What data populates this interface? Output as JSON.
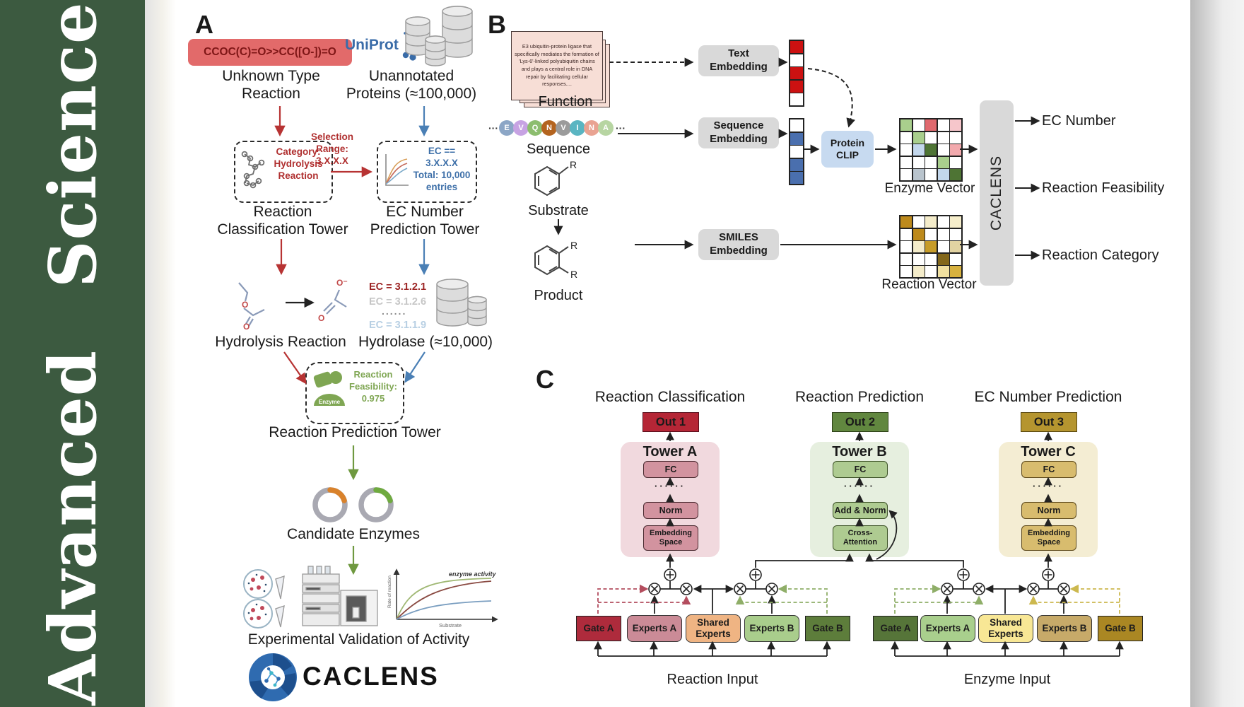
{
  "journal": {
    "vertical_title": "Advanced  Science"
  },
  "colors": {
    "sidebar_green": "#3c5a40",
    "smiles_box_bg": "#e26a6a",
    "red_accent": "#b73333",
    "blue_accent": "#4a7fb5",
    "green_accent": "#6f9940",
    "embedding_gray": "#d9d9d9",
    "protein_clip_blue": "#c7daf0",
    "out1_red": "#b52636",
    "out2_green": "#61873f",
    "out3_gold": "#b5952f"
  },
  "panelA": {
    "label": "A",
    "smiles_reaction": "CCOC(C)=O>>CC([O-])=O",
    "unknown_type_reaction": "Unknown Type\nReaction",
    "uniprot_logo": "UniProt",
    "unannotated_proteins": "Unannotated\nProteins (≈100,000)",
    "selection_range": "Selection\nRange:\n3.X.X.X",
    "category_hydrolysis": "Category:\nHydrolysis\nReaction",
    "ec_selection": "EC == 3.X.X.X\nTotal: 10,000\nentries",
    "reaction_classification_tower": "Reaction\nClassification Tower",
    "ec_number_prediction_tower": "EC Number\nPrediction Tower",
    "hydrolysis_reaction": "Hydrolysis Reaction",
    "ec_list": {
      "top": "EC = 3.1.2.1",
      "mid": "EC = 3.1.2.6",
      "dots": "......",
      "bottom": "EC = 3.1.1.9"
    },
    "hydrolase": "Hydrolase (≈10,000)",
    "enzyme_badge": "Enzyme",
    "reaction_feasibility": "Reaction\nFeasibility:\n0.975",
    "reaction_prediction_tower": "Reaction Prediction Tower",
    "candidate_enzymes": "Candidate Enzymes",
    "experimental_validation": "Experimental Validation of Activity",
    "activity_plot": {
      "curve_label": "enzyme activity",
      "ylabel": "Rate of reaction",
      "xlabel": "Substrate"
    },
    "caclens_wordmark": "CACLENS"
  },
  "panelB": {
    "label": "B",
    "function_card_text": "E3 ubiquitin-protein ligase that specifically mediates the formation of 'Lys-6'-linked polyubiquitin chains and plays a central role in DNA repair by facilitating cellular responses....",
    "function_label": "Function",
    "sequence_label": "Sequence",
    "ellipsis": "···",
    "beads": [
      {
        "letter": "E",
        "color": "#8ca6c6"
      },
      {
        "letter": "V",
        "color": "#c7a3e3"
      },
      {
        "letter": "Q",
        "color": "#8cbd6e"
      },
      {
        "letter": "N",
        "color": "#b4641f"
      },
      {
        "letter": "V",
        "color": "#9b9b9b"
      },
      {
        "letter": "I",
        "color": "#5ab5c2"
      },
      {
        "letter": "N",
        "color": "#e9a392"
      },
      {
        "letter": "A",
        "color": "#b7d5a2"
      }
    ],
    "substrate_label": "Substrate",
    "product_label": "Product",
    "r_label": "R",
    "text_embedding": "Text\nEmbedding",
    "sequence_embedding": "Sequence\nEmbedding",
    "smiles_embedding": "SMILES\nEmbedding",
    "protein_clip": "Protein\nCLIP",
    "text_vector": [
      "#cc1111",
      "#ffffff",
      "#cc1111",
      "#cc1111",
      "#ffffff"
    ],
    "sequence_vector": [
      "#ffffff",
      "#4a6fae",
      "#ffffff",
      "#4a6fae",
      "#4a6fae"
    ],
    "enzyme_vector_label": "Enzyme Vector",
    "reaction_vector_label": "Reaction Vector",
    "enzyme_matrix": [
      [
        "#a9cf8d",
        "#ffffff",
        "#e0696e",
        "#ffffff",
        "#f6c6cb"
      ],
      [
        "#ffffff",
        "#a9cf8d",
        "#ffffff",
        "#ffffff",
        "#ffffff"
      ],
      [
        "#ffffff",
        "#c3d7ec",
        "#4e7434",
        "#ffffff",
        "#f2a9ad"
      ],
      [
        "#ffffff",
        "#ffffff",
        "#ffffff",
        "#a9cf8d",
        "#ffffff"
      ],
      [
        "#ffffff",
        "#b9c4cd",
        "#ffffff",
        "#c3d7ec",
        "#4e7434"
      ]
    ],
    "reaction_matrix": [
      [
        "#bd8a1c",
        "#ffffff",
        "#f4ecca",
        "#ffffff",
        "#f6eecb"
      ],
      [
        "#ffffff",
        "#bd8a1c",
        "#ffffff",
        "#ffffff",
        "#ffffff"
      ],
      [
        "#ffffff",
        "#f4ecca",
        "#c79c28",
        "#ffffff",
        "#e2d3a2"
      ],
      [
        "#ffffff",
        "#ffffff",
        "#ffffff",
        "#83671a",
        "#ffffff"
      ],
      [
        "#ffffff",
        "#f4ecca",
        "#ffffff",
        "#f0e0a0",
        "#d7b13e"
      ]
    ],
    "caclens_block": "CACLENS",
    "outputs": [
      "EC Number",
      "Reaction Feasibility",
      "Reaction Category"
    ]
  },
  "panelC": {
    "label": "C",
    "columns": [
      {
        "header": "Reaction Classification",
        "out_label": "Out 1",
        "tower_label": "Tower A",
        "fc": "FC",
        "dots": "······",
        "mid": "Norm",
        "bottom": "Embedding\nSpace",
        "bg": "#f1d9de",
        "box_bg": "#d2939f",
        "box_border": "#4a2a30",
        "out_bg": "#b52636",
        "out_border": "#5a0f1d"
      },
      {
        "header": "Reaction Prediction",
        "out_label": "Out 2",
        "tower_label": "Tower B",
        "fc": "FC",
        "dots": "······",
        "mid": "Add & Norm",
        "bottom": "Cross-\nAttention",
        "bg": "#e6efdf",
        "box_bg": "#aecb91",
        "box_border": "#3f5429",
        "out_bg": "#61873f",
        "out_border": "#2c4016"
      },
      {
        "header": "EC Number Prediction",
        "out_label": "Out 3",
        "tower_label": "Tower C",
        "fc": "FC",
        "dots": "······",
        "mid": "Norm",
        "bottom": "Embedding\nSpace",
        "bg": "#f4edd3",
        "box_bg": "#d8bc6e",
        "box_border": "#5e4a1c",
        "out_bg": "#b5952f",
        "out_border": "#59470e"
      }
    ],
    "moe_groups": [
      {
        "input_label": "Reaction Input",
        "boxes": [
          {
            "label": "Gate A",
            "bg": "#ae2b3c"
          },
          {
            "label": "Experts A",
            "bg": "#cb8b97"
          },
          {
            "label": "Shared\nExperts",
            "bg": "#efb483"
          },
          {
            "label": "Experts B",
            "bg": "#a9cd8c"
          },
          {
            "label": "Gate B",
            "bg": "#5d7d3b"
          }
        ]
      },
      {
        "input_label": "Enzyme Input",
        "boxes": [
          {
            "label": "Gate A",
            "bg": "#567539"
          },
          {
            "label": "Experts A",
            "bg": "#a9cf8d"
          },
          {
            "label": "Shared\nExperts",
            "bg": "#f8e795"
          },
          {
            "label": "Experts B",
            "bg": "#c7aa69"
          },
          {
            "label": "Gate B",
            "bg": "#aa8723"
          }
        ]
      }
    ]
  }
}
